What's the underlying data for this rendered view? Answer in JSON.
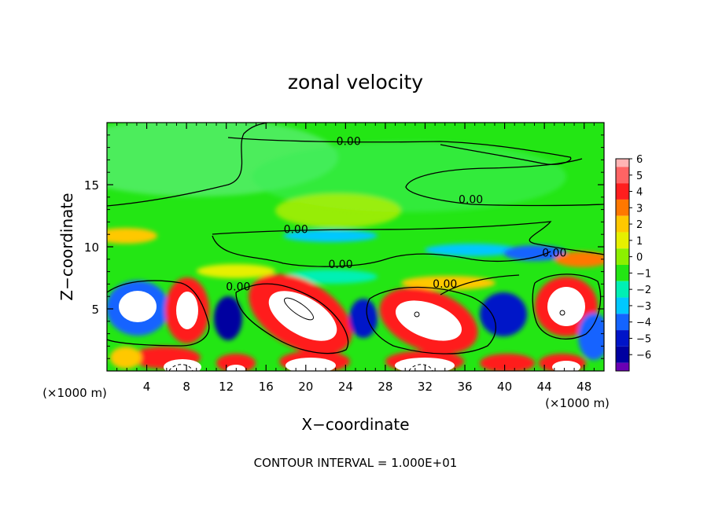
{
  "chart_data": {
    "type": "heatmap",
    "title": "zonal velocity",
    "xlabel": "X−coordinate",
    "ylabel": "Z−coordinate",
    "x_unit_left": "(×1000 m)",
    "x_unit_right": "(×1000 m)",
    "xlim": [
      0,
      50
    ],
    "ylim": [
      0,
      20
    ],
    "x_ticks": [
      4,
      8,
      12,
      16,
      20,
      24,
      28,
      32,
      36,
      40,
      44,
      48
    ],
    "y_ticks": [
      5,
      10,
      15
    ],
    "x_tick_labels": [
      "4",
      "8",
      "12",
      "16",
      "20",
      "24",
      "28",
      "32",
      "36",
      "40",
      "44",
      "48"
    ],
    "y_tick_labels": [
      "5",
      "10",
      "15"
    ],
    "colorbar": {
      "levels": [
        6,
        5,
        4,
        3,
        2,
        1,
        0,
        -1,
        -2,
        -3,
        -4,
        -5,
        -6
      ],
      "labels": [
        "6",
        "5",
        "4",
        "3",
        "2",
        "1",
        "0",
        "−1",
        "−2",
        "−3",
        "−4",
        "−5",
        "−6"
      ],
      "colors": [
        "#ffb4b4",
        "#ff6464",
        "#ff1e1e",
        "#ff7800",
        "#ffc800",
        "#e6f000",
        "#8cf000",
        "#23e614",
        "#00f0b4",
        "#00c8ff",
        "#1464ff",
        "#0014c8",
        "#0000a0",
        "#6a00b4"
      ]
    },
    "contour_labels": [
      {
        "text": "0.00",
        "x": 24.3,
        "y": 18.2
      },
      {
        "text": "0.00",
        "x": 36.6,
        "y": 13.5
      },
      {
        "text": "0.00",
        "x": 19.0,
        "y": 11.1
      },
      {
        "text": "0.00",
        "x": 23.5,
        "y": 8.3
      },
      {
        "text": "0.00",
        "x": 34.0,
        "y": 6.7
      },
      {
        "text": "0.00",
        "x": 13.2,
        "y": 6.5
      },
      {
        "text": "0.00",
        "x": 45.0,
        "y": 9.2
      }
    ],
    "footer": "CONTOUR INTERVAL =  1.000E+01"
  }
}
